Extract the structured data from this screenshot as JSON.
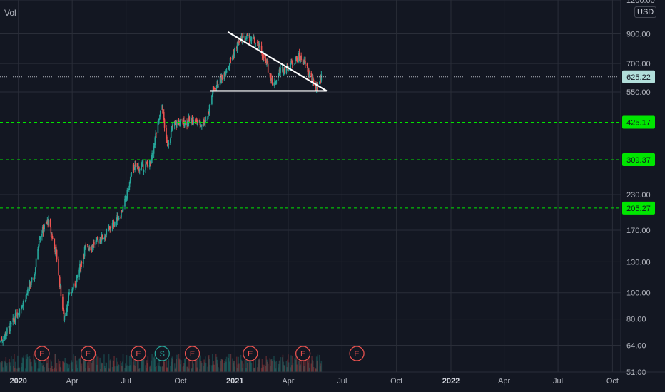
{
  "volume_label": "Vol",
  "currency": "USD",
  "colors": {
    "background": "#131722",
    "grid": "#2a2e39",
    "up": "#26a69a",
    "down": "#ef5350",
    "level_line": "#00e600",
    "level_tag_bg": "#00e600",
    "price_tag_bg": "#b2dfdb",
    "axis_text": "#b2b5be",
    "pattern": "#ffffff"
  },
  "chart_data": {
    "type": "candlestick",
    "title": "",
    "y_scale": "log",
    "ylim": [
      51,
      1200
    ],
    "xlim": [
      "2019-12-01",
      "2022-10-15"
    ],
    "y_ticks": [
      "1200.00",
      "900.00",
      "700.00",
      "550.00",
      "230.00",
      "170.00",
      "130.00",
      "100.00",
      "80.00",
      "64.00",
      "51.00"
    ],
    "x_ticks": [
      {
        "label": "2020",
        "date": "2020-01-01",
        "bold": true
      },
      {
        "label": "Apr",
        "date": "2020-04-01",
        "bold": false
      },
      {
        "label": "Jul",
        "date": "2020-07-01",
        "bold": false
      },
      {
        "label": "Oct",
        "date": "2020-10-01",
        "bold": false
      },
      {
        "label": "2021",
        "date": "2021-01-01",
        "bold": true
      },
      {
        "label": "Apr",
        "date": "2021-04-01",
        "bold": false
      },
      {
        "label": "Jul",
        "date": "2021-07-01",
        "bold": false
      },
      {
        "label": "Oct",
        "date": "2021-10-01",
        "bold": false
      },
      {
        "label": "2022",
        "date": "2022-01-01",
        "bold": true
      },
      {
        "label": "Apr",
        "date": "2022-04-01",
        "bold": false
      },
      {
        "label": "Jul",
        "date": "2022-07-01",
        "bold": false
      },
      {
        "label": "Oct",
        "date": "2022-10-01",
        "bold": false
      }
    ],
    "last_price": 625.22,
    "horizontal_levels": [
      425.17,
      309.37,
      205.27
    ],
    "pattern_lines": [
      {
        "from": [
          "2020-11-20",
          555
        ],
        "to": [
          "2021-06-05",
          555
        ]
      },
      {
        "from": [
          "2020-12-20",
          915
        ],
        "to": [
          "2021-06-05",
          555
        ]
      }
    ],
    "events": [
      {
        "date": "2020-02-10",
        "label": "E",
        "type": "earnings"
      },
      {
        "date": "2020-04-28",
        "label": "E",
        "type": "earnings"
      },
      {
        "date": "2020-07-22",
        "label": "E",
        "type": "earnings"
      },
      {
        "date": "2020-08-31",
        "label": "S",
        "type": "split"
      },
      {
        "date": "2020-10-21",
        "label": "E",
        "type": "earnings"
      },
      {
        "date": "2021-01-27",
        "label": "E",
        "type": "earnings"
      },
      {
        "date": "2021-04-26",
        "label": "E",
        "type": "earnings"
      },
      {
        "date": "2021-07-26",
        "label": "E",
        "type": "earnings"
      }
    ],
    "price_path": [
      [
        "2019-12-01",
        66
      ],
      [
        "2019-12-20",
        76
      ],
      [
        "2020-01-10",
        93
      ],
      [
        "2020-01-28",
        115
      ],
      [
        "2020-02-05",
        160
      ],
      [
        "2020-02-20",
        185
      ],
      [
        "2020-03-05",
        140
      ],
      [
        "2020-03-18",
        80
      ],
      [
        "2020-03-25",
        95
      ],
      [
        "2020-04-08",
        110
      ],
      [
        "2020-04-22",
        145
      ],
      [
        "2020-05-05",
        150
      ],
      [
        "2020-05-25",
        162
      ],
      [
        "2020-06-08",
        178
      ],
      [
        "2020-06-22",
        195
      ],
      [
        "2020-07-01",
        222
      ],
      [
        "2020-07-13",
        290
      ],
      [
        "2020-07-28",
        290
      ],
      [
        "2020-08-12",
        300
      ],
      [
        "2020-08-20",
        380
      ],
      [
        "2020-08-31",
        490
      ],
      [
        "2020-09-08",
        350
      ],
      [
        "2020-09-20",
        420
      ],
      [
        "2020-10-05",
        425
      ],
      [
        "2020-10-20",
        430
      ],
      [
        "2020-11-05",
        420
      ],
      [
        "2020-11-15",
        440
      ],
      [
        "2020-11-25",
        560
      ],
      [
        "2020-12-10",
        620
      ],
      [
        "2020-12-22",
        700
      ],
      [
        "2021-01-08",
        850
      ],
      [
        "2021-01-20",
        870
      ],
      [
        "2021-02-01",
        850
      ],
      [
        "2021-02-12",
        800
      ],
      [
        "2021-02-25",
        680
      ],
      [
        "2021-03-08",
        580
      ],
      [
        "2021-03-18",
        660
      ],
      [
        "2021-04-01",
        680
      ],
      [
        "2021-04-12",
        720
      ],
      [
        "2021-04-20",
        740
      ],
      [
        "2021-05-01",
        690
      ],
      [
        "2021-05-12",
        600
      ],
      [
        "2021-05-18",
        575
      ],
      [
        "2021-05-27",
        625
      ]
    ]
  }
}
